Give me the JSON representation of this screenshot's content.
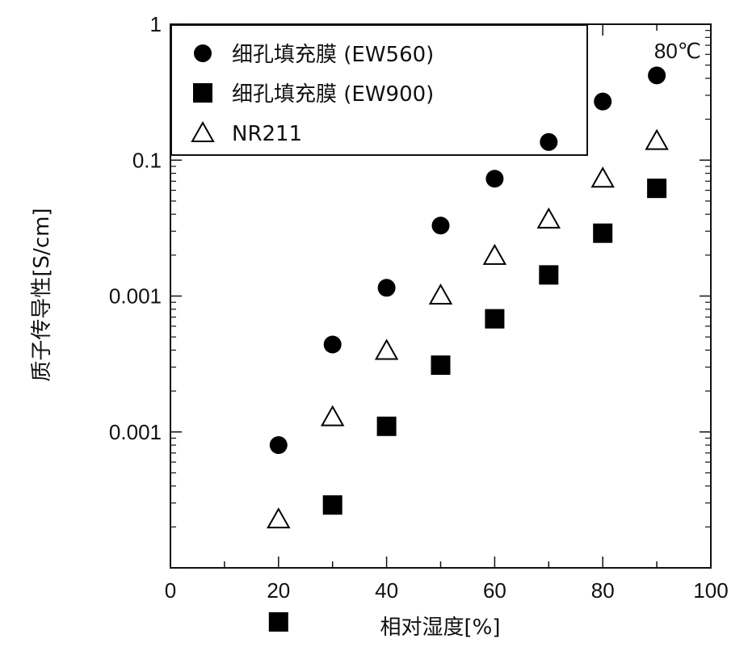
{
  "chart_data": {
    "type": "scatter",
    "title": "",
    "annotation": "80℃",
    "xlabel": "相对湿度[%]",
    "ylabel": "质子传导性[S/cm]",
    "xlim": [
      0,
      100
    ],
    "ylim_log10": [
      -4,
      0
    ],
    "yscale": "log",
    "x_ticks": [
      0,
      20,
      40,
      60,
      80,
      100
    ],
    "x_tick_labels": [
      "0",
      "20",
      "40",
      "60",
      "80",
      "100"
    ],
    "y_tick_labels": [
      "1",
      "0.1",
      "0.001",
      "0.001"
    ],
    "x": [
      20,
      30,
      40,
      50,
      60,
      70,
      80,
      90
    ],
    "series": [
      {
        "name": "细孔填充膜 (EW560)",
        "marker": "filled-circle",
        "values": [
          0.0008,
          0.0044,
          0.0115,
          0.033,
          0.073,
          0.136,
          0.27,
          0.42
        ]
      },
      {
        "name": "细孔填充膜 (EW900)",
        "marker": "filled-square",
        "values": [
          4e-05,
          0.00029,
          0.0011,
          0.0031,
          0.0068,
          0.0143,
          0.029,
          0.062
        ]
      },
      {
        "name": "NR211",
        "marker": "open-triangle",
        "values": [
          0.00023,
          0.0013,
          0.004,
          0.0102,
          0.02,
          0.037,
          0.074,
          0.14
        ]
      }
    ],
    "legend_position": "top-left",
    "grid": false
  }
}
